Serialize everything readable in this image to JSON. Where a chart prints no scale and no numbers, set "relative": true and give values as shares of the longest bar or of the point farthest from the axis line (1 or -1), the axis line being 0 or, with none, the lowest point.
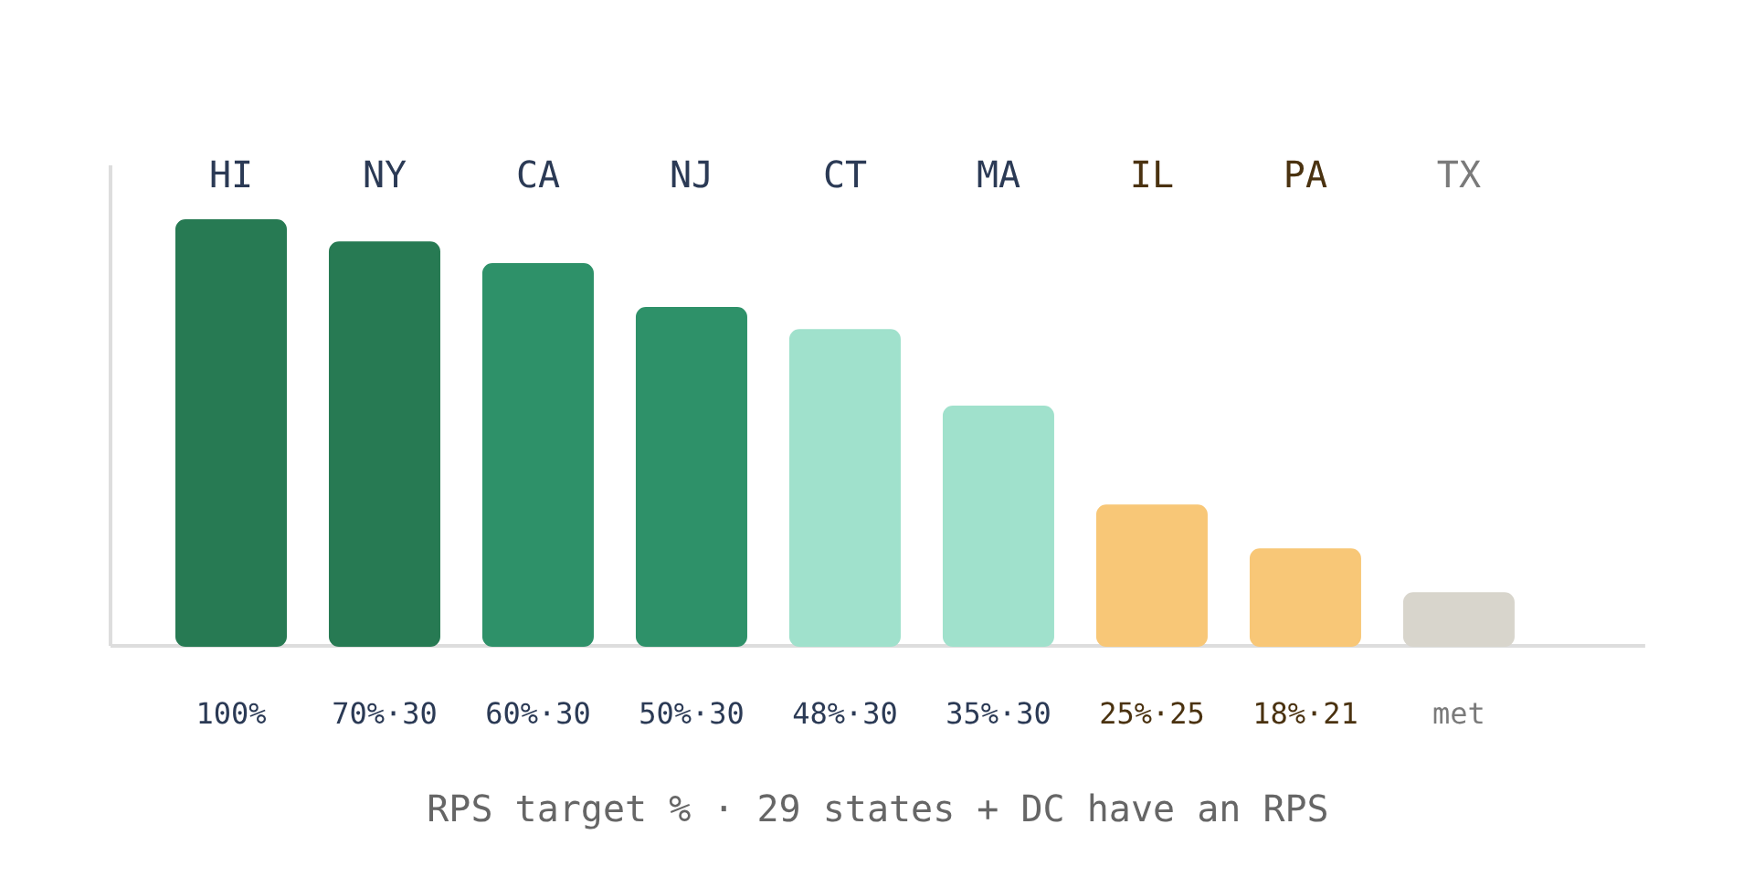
{
  "chart_data": {
    "type": "bar",
    "relative": true,
    "title": "RPS target % · 29 states + DC have an RPS",
    "categories": [
      "HI",
      "NY",
      "CA",
      "NJ",
      "CT",
      "MA",
      "IL",
      "PA",
      "TX"
    ],
    "values": [
      1,
      0.948,
      0.897,
      0.794,
      0.742,
      0.562,
      0.33,
      0.227,
      0.124
    ],
    "colors": [
      "#277a53",
      "#277a53",
      "#2e9169",
      "#2e9169",
      "#a0e1cc",
      "#a0e1cc",
      "#f8c777",
      "#f8c777",
      "#d8d5cc"
    ],
    "annotations": [
      "100%",
      "70%·30",
      "60%·30",
      "50%·30",
      "48%·30",
      "35%·30",
      "25%·25",
      "18%·21",
      "met"
    ],
    "grid": false
  }
}
